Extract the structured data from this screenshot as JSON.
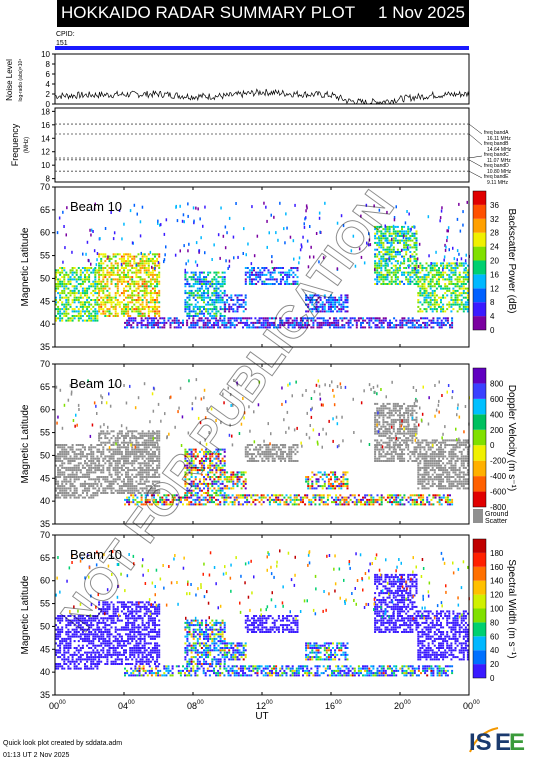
{
  "header": {
    "title": "HOKKAIDO RADAR SUMMARY PLOT",
    "date": "1 Nov 2025"
  },
  "cpid": {
    "label": "CPID:",
    "value": "151"
  },
  "noise": {
    "ylabel": "Noise Level",
    "sublabel": "log-radio (abs)×10⁴",
    "ticks": [
      "0",
      "2",
      "4",
      "6",
      "8",
      "10"
    ],
    "ylim": [
      0,
      10
    ]
  },
  "frequency": {
    "ylabel": "Frequency",
    "unit": "(MHz)",
    "ticks": [
      "8",
      "10",
      "12",
      "14",
      "16",
      "18"
    ],
    "ylim": [
      7.5,
      18.5
    ],
    "bands": [
      {
        "name": "freq bandA",
        "value": "16.11 MHz",
        "mhz": 16.11
      },
      {
        "name": "freq bandB",
        "value": "14.64 MHz",
        "mhz": 14.64
      },
      {
        "name": "freq bandC",
        "value": "11.07 MHz",
        "mhz": 11.07
      },
      {
        "name": "freq bandD",
        "value": "10.80 MHz",
        "mhz": 10.8
      },
      {
        "name": "freq bandE",
        "value": "9.11 MHz",
        "mhz": 9.11
      }
    ]
  },
  "panels": [
    {
      "beam": "Beam 10",
      "cbar_label": "Backscatter Power (dB)",
      "cbar_ticks": [
        "0",
        "4",
        "8",
        "12",
        "16",
        "20",
        "24",
        "28",
        "32",
        "36"
      ],
      "scheme": "power"
    },
    {
      "beam": "Beam 10",
      "cbar_label": "Doppler Velocity (m s⁻¹)",
      "cbar_ticks": [
        "-800",
        "-600",
        "-400",
        "-200",
        "0",
        "200",
        "400",
        "600",
        "800"
      ],
      "scheme": "velocity",
      "gs_label1": "Ground",
      "gs_label2": "Scatter"
    },
    {
      "beam": "Beam 10",
      "cbar_label": "Spectral Width (m s⁻¹)",
      "cbar_ticks": [
        "0",
        "20",
        "40",
        "60",
        "80",
        "100",
        "120",
        "140",
        "160",
        "180"
      ],
      "scheme": "width"
    }
  ],
  "axes": {
    "lat_label": "Magnetic Latitude",
    "lat_ticks": [
      "35",
      "40",
      "45",
      "50",
      "55",
      "60",
      "65",
      "70"
    ],
    "x_ticks": [
      "00",
      "04",
      "08",
      "12",
      "16",
      "20",
      "00"
    ],
    "x_sup": "00",
    "xlabel": "UT"
  },
  "chart_data": {
    "type": "heatmap",
    "title": "HOKKAIDO RADAR SUMMARY PLOT",
    "xlabel": "UT",
    "ylabel": "Magnetic Latitude",
    "xlim": [
      0,
      24
    ],
    "ylim": [
      35,
      70
    ],
    "noise_profile": [
      {
        "ut": 0,
        "level": 1.6
      },
      {
        "ut": 2,
        "level": 1.8
      },
      {
        "ut": 4,
        "level": 1.9
      },
      {
        "ut": 6,
        "level": 2.0
      },
      {
        "ut": 8,
        "level": 1.5
      },
      {
        "ut": 10,
        "level": 1.6
      },
      {
        "ut": 12,
        "level": 2.4
      },
      {
        "ut": 14,
        "level": 2.0
      },
      {
        "ut": 16,
        "level": 1.8
      },
      {
        "ut": 17,
        "level": 0.6
      },
      {
        "ut": 18,
        "level": 0.3
      },
      {
        "ut": 19,
        "level": 0.5
      },
      {
        "ut": 20,
        "level": 1.0
      },
      {
        "ut": 22,
        "level": 1.8
      },
      {
        "ut": 24,
        "level": 2.0
      }
    ],
    "regions": [
      {
        "ut": [
          0,
          2.5
        ],
        "lat": [
          41,
          53
        ],
        "power": 18,
        "gs": true
      },
      {
        "ut": [
          2.5,
          6
        ],
        "lat": [
          42,
          56
        ],
        "power": 24,
        "gs": true
      },
      {
        "ut": [
          7.5,
          9.8
        ],
        "lat": [
          42,
          52
        ],
        "power": 12,
        "gs": false
      },
      {
        "ut": [
          9.8,
          11
        ],
        "lat": [
          43,
          47
        ],
        "power": 6,
        "gs": false
      },
      {
        "ut": [
          11,
          14
        ],
        "lat": [
          49,
          53
        ],
        "power": 8,
        "gs": true
      },
      {
        "ut": [
          14.5,
          17
        ],
        "lat": [
          43,
          47
        ],
        "power": 6,
        "gs": false
      },
      {
        "ut": [
          18.5,
          21
        ],
        "lat": [
          49,
          62
        ],
        "power": 16,
        "gs": true
      },
      {
        "ut": [
          21,
          24
        ],
        "lat": [
          43,
          54
        ],
        "power": 18,
        "gs": true
      },
      {
        "ut": [
          4,
          23
        ],
        "lat": [
          39.5,
          42
        ],
        "power": 4,
        "gs": false
      }
    ]
  },
  "watermark": "NOT FOR PUBLICATION",
  "footer": {
    "line1": "Quick look plot created by sddata.adm",
    "line2": "01:13 UT  2 Nov 2025"
  },
  "logo": {
    "text": "ISEE"
  }
}
